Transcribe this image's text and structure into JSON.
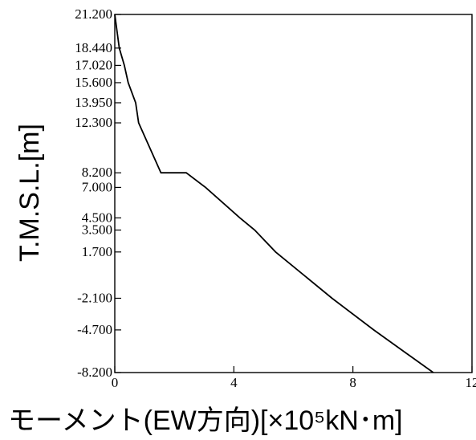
{
  "chart_data": {
    "type": "line",
    "xlabel": "モーメント(EW方向)[×10⁵kN･m]",
    "ylabel": "T.M.S.L.[m]",
    "xlim": [
      0,
      12
    ],
    "ylim": [
      -8.2,
      21.2
    ],
    "xticks": [
      "0",
      "4",
      "8",
      "12"
    ],
    "yticks": [
      "21.200",
      "18.440",
      "17.020",
      "15.600",
      "13.950",
      "12.300",
      "8.200",
      "7.000",
      "4.500",
      "3.500",
      "1.700",
      "-2.100",
      "-4.700",
      "-8.200"
    ],
    "series": [
      {
        "points": [
          [
            0,
            21.2
          ],
          [
            0.15,
            18.44
          ],
          [
            0.32,
            17.02
          ],
          [
            0.45,
            15.6
          ],
          [
            0.7,
            13.95
          ],
          [
            0.8,
            12.3
          ],
          [
            1.55,
            8.2
          ],
          [
            2.4,
            8.2
          ],
          [
            3.05,
            7.0
          ],
          [
            4.2,
            4.5
          ],
          [
            4.7,
            3.5
          ],
          [
            5.4,
            1.7
          ],
          [
            7.3,
            -2.1
          ],
          [
            8.7,
            -4.7
          ],
          [
            10.7,
            -8.2
          ]
        ]
      }
    ],
    "grid": false,
    "legend": "none"
  }
}
